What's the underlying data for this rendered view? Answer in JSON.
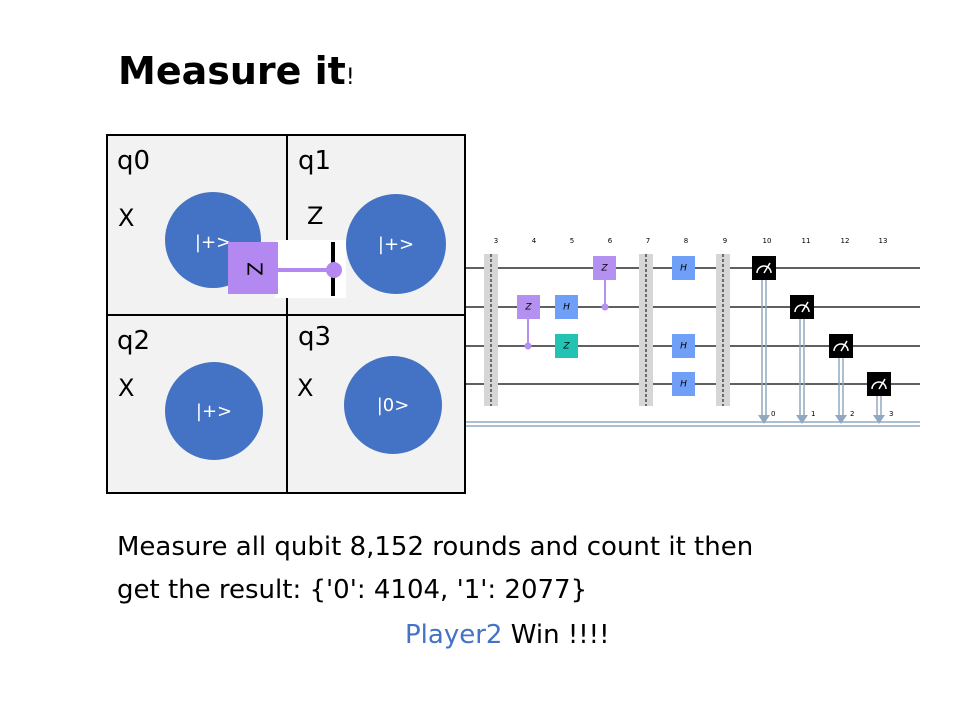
{
  "title": {
    "main": "Measure it",
    "suffix": "!"
  },
  "grid": {
    "cells": [
      {
        "qubit": "q0",
        "gate": "X",
        "state": "|+>"
      },
      {
        "qubit": "q1",
        "gate": "Z",
        "state": "|+>"
      },
      {
        "qubit": "q2",
        "gate": "X",
        "state": "|+>"
      },
      {
        "qubit": "q3",
        "gate": "X",
        "state": "|0>"
      }
    ],
    "cz_gate_label": "Z"
  },
  "circuit": {
    "column_numbers": [
      "3",
      "4",
      "5",
      "6",
      "7",
      "8",
      "9",
      "10",
      "11",
      "12",
      "13"
    ],
    "gate_label_z": "Z",
    "gate_label_h": "H",
    "classical_bits": [
      "0",
      "1",
      "2",
      "3"
    ],
    "colors": {
      "z_purple": "#b490f0",
      "z_teal": "#22c2b4",
      "h_blue": "#6f9ff7",
      "measure_black": "#000000",
      "barrier": "#d6d6d6",
      "classical": "#90a8c0"
    }
  },
  "result": {
    "line1": "Measure all qubit 8,152 rounds and count it then",
    "line2": "get the result: {'0': 4104, '1': 2077}",
    "winner": "Player2",
    "win_text": " Win !!!!"
  },
  "colors": {
    "qubit_fill": "#4472c4",
    "player": "#4472c4",
    "cell_bg": "#f2f2f2",
    "cz_gate": "#b388f0"
  }
}
